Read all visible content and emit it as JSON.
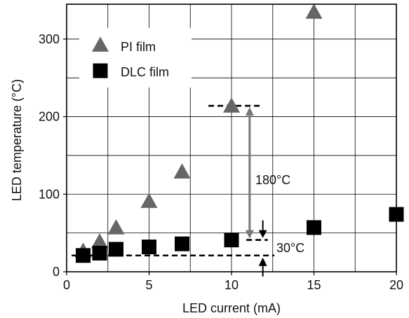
{
  "colors": {
    "pi": "#666666",
    "dlc": "#000000",
    "arrow": "#777777",
    "grid": "#000000"
  },
  "chart_data": {
    "type": "scatter",
    "xlabel": "LED current (mA)",
    "ylabel": "LED temperature (°C)",
    "xlim": [
      0,
      20
    ],
    "ylim": [
      0,
      345
    ],
    "xticks": [
      0,
      5,
      10,
      15,
      20
    ],
    "yticks": [
      0,
      100,
      200,
      300
    ],
    "grid": true,
    "legend_position": "top-left",
    "series": [
      {
        "name": "PI film",
        "marker": "triangle",
        "x": [
          1,
          2,
          3,
          5,
          7,
          10,
          15
        ],
        "y": [
          28,
          40,
          58,
          92,
          130,
          215,
          336
        ]
      },
      {
        "name": "DLC film",
        "marker": "square",
        "x": [
          1,
          2,
          3,
          5,
          7,
          10,
          15,
          20
        ],
        "y": [
          21,
          24,
          29,
          32,
          36,
          41,
          57,
          74
        ]
      }
    ],
    "annotations": [
      {
        "text": "180°C"
      },
      {
        "text": "30°C"
      }
    ]
  }
}
